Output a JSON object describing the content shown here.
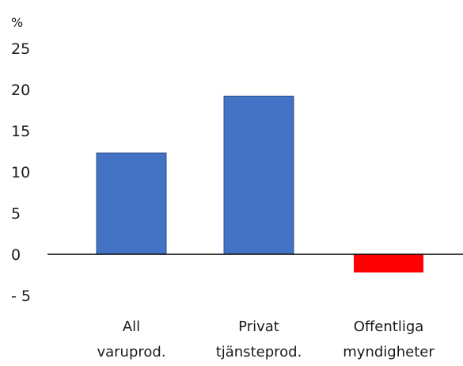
{
  "chart_data": {
    "type": "bar",
    "title": "",
    "xlabel": "",
    "ylabel": "%",
    "ylim": [
      -5,
      25
    ],
    "yticks": [
      25,
      20,
      15,
      10,
      5,
      0,
      -5
    ],
    "ytick_labels": [
      "25",
      "20",
      "15",
      "10",
      "5",
      "0",
      "- 5"
    ],
    "grid": false,
    "legend": "none",
    "categories": [
      [
        "All",
        "varuprod."
      ],
      [
        "Privat",
        "tjänsteprod."
      ],
      [
        "Offentliga",
        "myndigheter"
      ]
    ],
    "values": [
      12.3,
      19.2,
      -2.2
    ],
    "colors": [
      "#4472C4",
      "#4472C4",
      "#FF0000"
    ],
    "bar_edge_color": "#2E4F8F",
    "axis_color": "#000000"
  }
}
